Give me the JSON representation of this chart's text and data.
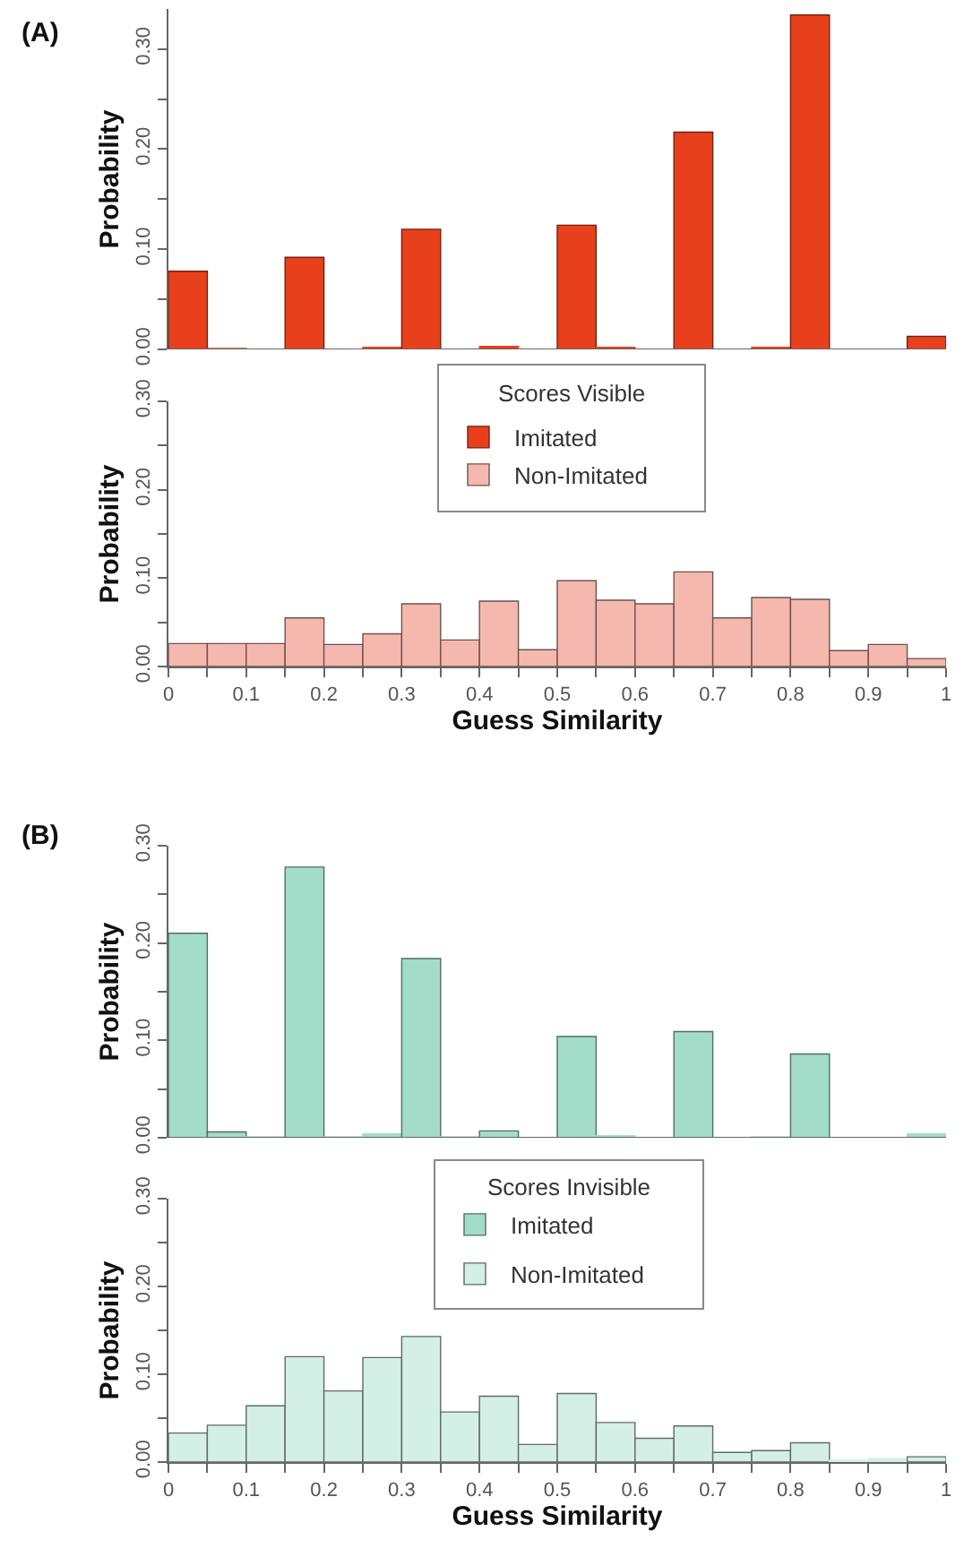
{
  "chart_data": [
    {
      "type": "histogram",
      "ylabel": "Probability",
      "annotations": [
        "(A)"
      ],
      "legend": "bottom",
      "bins": [
        0,
        0.05,
        0.1,
        0.15,
        0.2,
        0.25,
        0.3,
        0.35,
        0.4,
        0.45,
        0.5,
        0.55,
        0.6,
        0.65,
        0.7,
        0.75,
        0.8,
        0.85,
        0.9,
        0.95,
        1
      ],
      "xlim": [
        0,
        1
      ],
      "ylim": [
        0,
        0.34
      ],
      "yticks": [
        {
          "value": 0,
          "label": "0.00"
        },
        {
          "value": 0.05,
          "label": null
        },
        {
          "value": 0.1,
          "label": "0.10"
        },
        {
          "value": 0.15,
          "label": null
        },
        {
          "value": 0.2,
          "label": "0.20"
        },
        {
          "value": 0.25,
          "label": null
        },
        {
          "value": 0.3,
          "label": "0.30"
        }
      ],
      "tick_labels": "y",
      "series": [
        {
          "name": "Imitated",
          "color": "#e8401c",
          "values": [
            0.078,
            0.001,
            0,
            0.092,
            0,
            0.002,
            0.12,
            0,
            0.003,
            0,
            0.124,
            0.002,
            0,
            0.217,
            0,
            0.002,
            0.334,
            0,
            0,
            0.013
          ]
        }
      ]
    },
    {
      "type": "histogram",
      "ylabel": "Probability",
      "xlabel": "Guess Similarity",
      "legend_title": "Scores Visible",
      "legend": "top",
      "bins": [
        0,
        0.05,
        0.1,
        0.15,
        0.2,
        0.25,
        0.3,
        0.35,
        0.4,
        0.45,
        0.5,
        0.55,
        0.6,
        0.65,
        0.7,
        0.75,
        0.8,
        0.85,
        0.9,
        0.95,
        1
      ],
      "xlim": [
        0,
        1
      ],
      "xticks": [
        0,
        {
          "value": 0.05,
          "label": null
        },
        0.1,
        {
          "value": 0.15,
          "label": null
        },
        0.2,
        {
          "value": 0.25,
          "label": null
        },
        0.3,
        {
          "value": 0.35,
          "label": null
        },
        0.4,
        {
          "value": 0.45,
          "label": null
        },
        0.5,
        {
          "value": 0.55,
          "label": null
        },
        0.6,
        {
          "value": 0.65,
          "label": null
        },
        0.7,
        {
          "value": 0.75,
          "label": null
        },
        0.8,
        {
          "value": 0.85,
          "label": null
        },
        0.9,
        {
          "value": 0.95,
          "label": null
        },
        1
      ],
      "ylim": [
        0,
        0.3
      ],
      "yticks": [
        {
          "value": 0,
          "label": "0.00"
        },
        {
          "value": 0.05,
          "label": null
        },
        {
          "value": 0.1,
          "label": "0.10"
        },
        {
          "value": 0.15,
          "label": null
        },
        {
          "value": 0.2,
          "label": "0.20"
        },
        {
          "value": 0.25,
          "label": null
        },
        {
          "value": 0.3,
          "label": "0.30"
        }
      ],
      "series": [
        {
          "name": "Non-Imitated",
          "color": "#f5b8ae",
          "values": [
            0.026,
            0.026,
            0.026,
            0.055,
            0.025,
            0.037,
            0.071,
            0.03,
            0.074,
            0.019,
            0.097,
            0.075,
            0.071,
            0.107,
            0.055,
            0.078,
            0.076,
            0.018,
            0.025,
            0.009
          ]
        }
      ]
    },
    {
      "type": "histogram",
      "ylabel": "Probability",
      "annotations": [
        "(B)"
      ],
      "legend": "bottom",
      "bins": [
        0,
        0.05,
        0.1,
        0.15,
        0.2,
        0.25,
        0.3,
        0.35,
        0.4,
        0.45,
        0.5,
        0.55,
        0.6,
        0.65,
        0.7,
        0.75,
        0.8,
        0.85,
        0.9,
        0.95,
        1
      ],
      "xlim": [
        0,
        1
      ],
      "ylim": [
        0,
        0.3
      ],
      "yticks": [
        {
          "value": 0,
          "label": "0.00"
        },
        {
          "value": 0.05,
          "label": null
        },
        {
          "value": 0.1,
          "label": "0.10"
        },
        {
          "value": 0.15,
          "label": null
        },
        {
          "value": 0.2,
          "label": "0.20"
        },
        {
          "value": 0.25,
          "label": null
        },
        {
          "value": 0.3,
          "label": "0.30"
        }
      ],
      "tick_labels": "y",
      "series": [
        {
          "name": "Imitated",
          "color": "#a3dcc9",
          "values": [
            0.21,
            0.006,
            0.001,
            0.278,
            0.001,
            0.004,
            0.184,
            0.001,
            0.007,
            0,
            0.104,
            0.002,
            0,
            0.109,
            0,
            0.001,
            0.086,
            0,
            0,
            0.004
          ]
        }
      ]
    },
    {
      "type": "histogram",
      "ylabel": "Probability",
      "xlabel": "Guess Similarity",
      "legend_title": "Scores Invisible",
      "legend": "top",
      "bins": [
        0,
        0.05,
        0.1,
        0.15,
        0.2,
        0.25,
        0.3,
        0.35,
        0.4,
        0.45,
        0.5,
        0.55,
        0.6,
        0.65,
        0.7,
        0.75,
        0.8,
        0.85,
        0.9,
        0.95,
        1
      ],
      "xlim": [
        0,
        1
      ],
      "xticks": [
        0,
        {
          "value": 0.05,
          "label": null
        },
        0.1,
        {
          "value": 0.15,
          "label": null
        },
        0.2,
        {
          "value": 0.25,
          "label": null
        },
        0.3,
        {
          "value": 0.35,
          "label": null
        },
        0.4,
        {
          "value": 0.45,
          "label": null
        },
        0.5,
        {
          "value": 0.55,
          "label": null
        },
        0.6,
        {
          "value": 0.65,
          "label": null
        },
        0.7,
        {
          "value": 0.75,
          "label": null
        },
        0.8,
        {
          "value": 0.85,
          "label": null
        },
        0.9,
        {
          "value": 0.95,
          "label": null
        },
        1
      ],
      "ylim": [
        0,
        0.3
      ],
      "yticks": [
        {
          "value": 0,
          "label": "0.00"
        },
        {
          "value": 0.05,
          "label": null
        },
        {
          "value": 0.1,
          "label": "0.10"
        },
        {
          "value": 0.15,
          "label": null
        },
        {
          "value": 0.2,
          "label": "0.20"
        },
        {
          "value": 0.25,
          "label": null
        },
        {
          "value": 0.3,
          "label": "0.30"
        }
      ],
      "series": [
        {
          "name": "Non-Imitated",
          "color": "#d3efe6",
          "values": [
            0.033,
            0.042,
            0.064,
            0.12,
            0.081,
            0.119,
            0.143,
            0.057,
            0.075,
            0.02,
            0.078,
            0.045,
            0.027,
            0.041,
            0.011,
            0.013,
            0.022,
            0.002,
            0.004,
            0.006
          ]
        }
      ]
    }
  ]
}
